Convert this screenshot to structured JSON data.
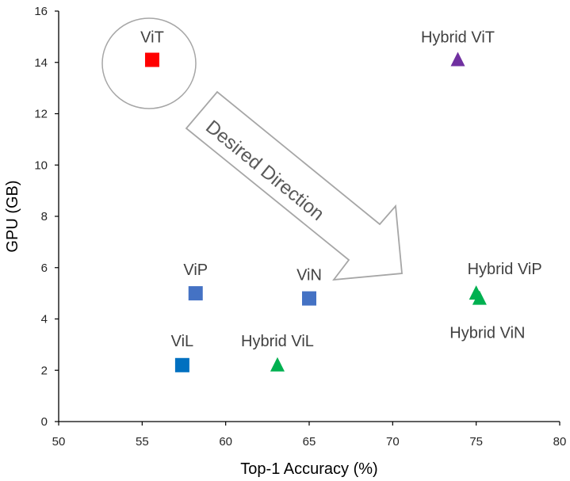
{
  "chart_data": {
    "type": "scatter",
    "xlabel": "Top-1 Accuracy (%)",
    "ylabel": "GPU (GB)",
    "xlim": [
      50,
      80
    ],
    "ylim": [
      0,
      16
    ],
    "xticks": [
      50,
      55,
      60,
      65,
      70,
      75,
      80
    ],
    "yticks": [
      0,
      2,
      4,
      6,
      8,
      10,
      12,
      14,
      16
    ],
    "grid": false,
    "points": [
      {
        "label": "ViT",
        "x": 55.6,
        "y": 14.1,
        "marker": "square",
        "color": "#FF0000",
        "highlighted": true
      },
      {
        "label": "Hybrid ViT",
        "x": 73.9,
        "y": 14.1,
        "marker": "triangle",
        "color": "#7030A0"
      },
      {
        "label": "ViP",
        "x": 58.2,
        "y": 5.0,
        "marker": "square",
        "color": "#4472C4"
      },
      {
        "label": "ViN",
        "x": 65.0,
        "y": 4.8,
        "marker": "square",
        "color": "#4472C4"
      },
      {
        "label": "ViL",
        "x": 57.4,
        "y": 2.2,
        "marker": "square",
        "color": "#0070C0"
      },
      {
        "label": "Hybrid ViL",
        "x": 63.1,
        "y": 2.2,
        "marker": "triangle",
        "color": "#00B050"
      },
      {
        "label": "Hybrid ViP",
        "x": 75.0,
        "y": 5.0,
        "marker": "triangle",
        "color": "#00B050"
      },
      {
        "label": "Hybrid ViN",
        "x": 75.2,
        "y": 4.8,
        "marker": "triangle",
        "color": "#00B050"
      }
    ],
    "annotations": [
      {
        "type": "arrow",
        "text": "Desired Direction",
        "from": [
          57.5,
          11.5
        ],
        "to": [
          70.5,
          5.5
        ]
      }
    ]
  }
}
